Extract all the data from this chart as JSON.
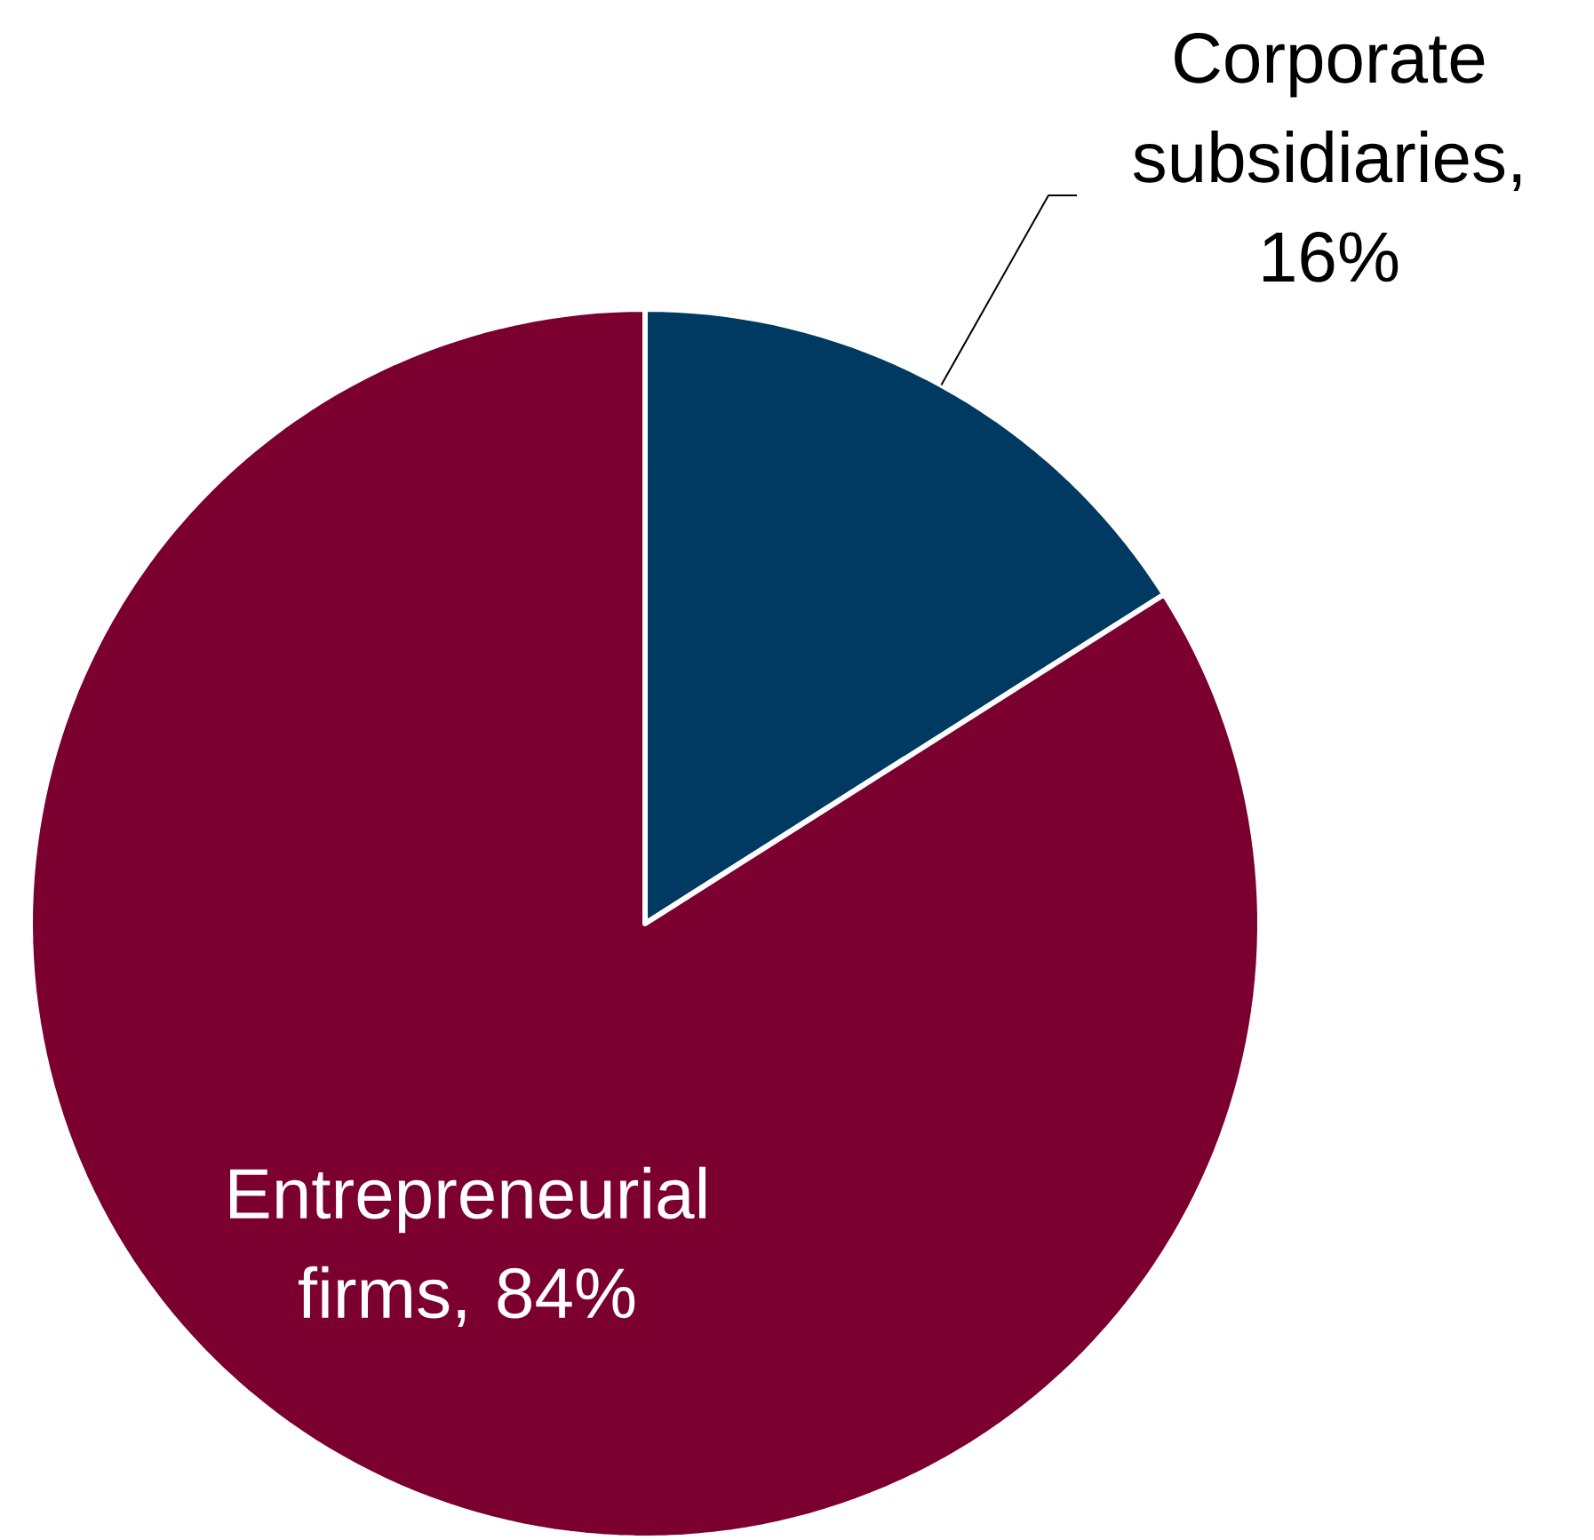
{
  "chart_data": {
    "type": "pie",
    "categories": [
      "Corporate subsidiaries",
      "Entrepreneurial firms"
    ],
    "values": [
      16,
      84
    ],
    "value_labels": [
      ", 16%",
      ", 84%"
    ],
    "colors": [
      "#003a62",
      "#7b0030"
    ]
  }
}
